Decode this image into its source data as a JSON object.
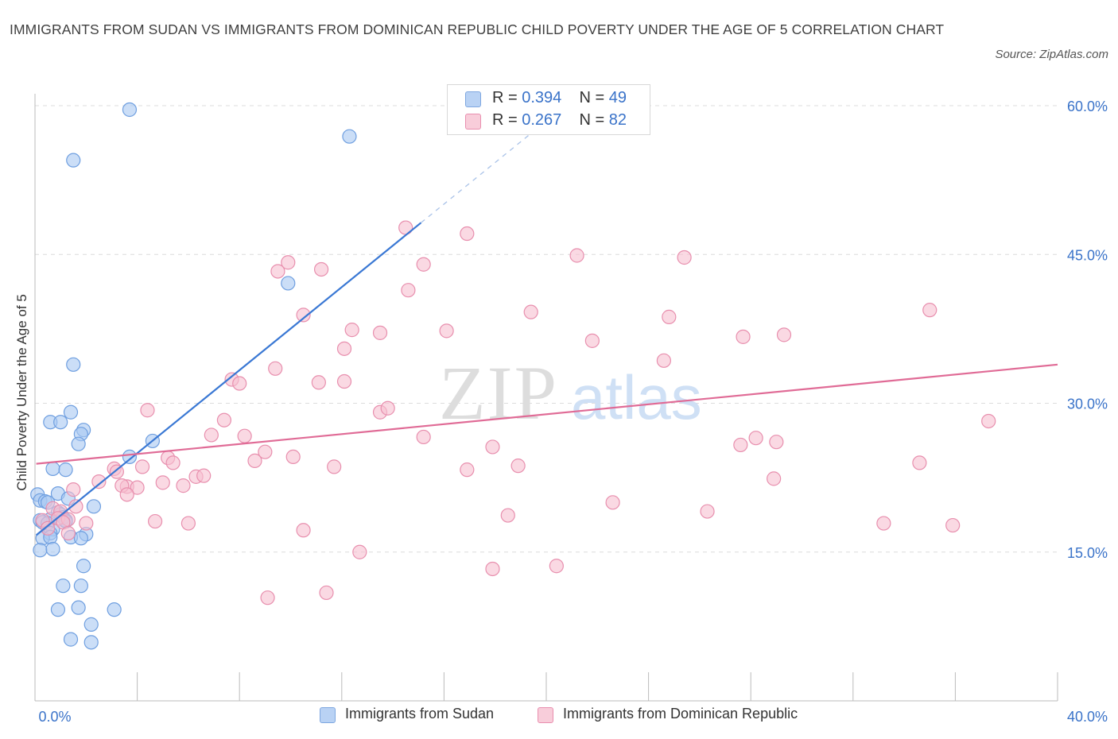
{
  "title": "IMMIGRANTS FROM SUDAN VS IMMIGRANTS FROM DOMINICAN REPUBLIC CHILD POVERTY UNDER THE AGE OF 5 CORRELATION CHART",
  "source": "Source: ZipAtlas.com",
  "watermark": {
    "zip": "ZIP",
    "atlas": "atlas"
  },
  "legend": {
    "r_label": "R =",
    "n_label": "N =",
    "rows": [
      {
        "r": "0.394",
        "n": "49",
        "color": "#a9c8f2",
        "border": "#7ea7e0"
      },
      {
        "r": "0.267",
        "n": "82",
        "color": "#f6bfd0",
        "border": "#e98faf"
      }
    ]
  },
  "bottom_legend": [
    {
      "label": "Immigrants from Sudan",
      "color": "#a9c8f2",
      "border": "#7ea7e0"
    },
    {
      "label": "Immigrants from Dominican Republic",
      "color": "#f6bfd0",
      "border": "#e98faf"
    }
  ],
  "chart_data": {
    "type": "scatter",
    "ylabel": "Child Poverty Under the Age of 5",
    "xlabel": "",
    "xlim": [
      0,
      40
    ],
    "ylim": [
      0,
      60
    ],
    "x_tick_labels": [
      {
        "value": 0,
        "label": "0.0%"
      },
      {
        "value": 40,
        "label": "40.0%"
      }
    ],
    "y_tick_labels": [
      {
        "value": 15,
        "label": "15.0%"
      },
      {
        "value": 30,
        "label": "30.0%"
      },
      {
        "value": 45,
        "label": "45.0%"
      },
      {
        "value": 60,
        "label": "60.0%"
      }
    ],
    "grid": true,
    "series": [
      {
        "name": "Immigrants from Sudan",
        "color": "#a9c8f2",
        "edge": "#6f9fe0",
        "line_color": "#3a78d4",
        "trend": {
          "x0": 0.05,
          "y0": 16.7,
          "x1": 15.1,
          "y1": 48.2,
          "dash_to_x": 19.4,
          "dash_to_y": 57.2
        },
        "points": [
          [
            3.7,
            59.6
          ],
          [
            12.3,
            56.9
          ],
          [
            1.5,
            54.5
          ],
          [
            9.9,
            42.1
          ],
          [
            1.5,
            33.9
          ],
          [
            1.4,
            29.1
          ],
          [
            0.6,
            28.1
          ],
          [
            1.0,
            28.1
          ],
          [
            1.9,
            27.3
          ],
          [
            1.8,
            26.9
          ],
          [
            1.7,
            25.9
          ],
          [
            4.6,
            26.2
          ],
          [
            3.7,
            24.6
          ],
          [
            0.7,
            23.4
          ],
          [
            1.2,
            23.3
          ],
          [
            0.1,
            20.8
          ],
          [
            0.2,
            20.2
          ],
          [
            0.4,
            20.1
          ],
          [
            0.5,
            20.0
          ],
          [
            0.9,
            20.9
          ],
          [
            1.3,
            20.4
          ],
          [
            2.3,
            19.6
          ],
          [
            0.9,
            19.0
          ],
          [
            1.0,
            18.8
          ],
          [
            0.6,
            18.3
          ],
          [
            1.1,
            18.5
          ],
          [
            0.2,
            18.2
          ],
          [
            0.3,
            18.0
          ],
          [
            0.5,
            17.9
          ],
          [
            1.2,
            18.2
          ],
          [
            1.2,
            18.1
          ],
          [
            0.7,
            17.3
          ],
          [
            0.6,
            16.9
          ],
          [
            1.4,
            16.5
          ],
          [
            2.0,
            16.8
          ],
          [
            0.3,
            16.4
          ],
          [
            0.6,
            16.5
          ],
          [
            1.8,
            16.4
          ],
          [
            0.2,
            15.2
          ],
          [
            0.7,
            15.3
          ],
          [
            1.9,
            13.6
          ],
          [
            1.1,
            11.6
          ],
          [
            1.8,
            11.6
          ],
          [
            0.9,
            9.2
          ],
          [
            1.7,
            9.4
          ],
          [
            3.1,
            9.2
          ],
          [
            2.2,
            7.7
          ],
          [
            1.4,
            6.2
          ],
          [
            2.2,
            5.9
          ]
        ]
      },
      {
        "name": "Immigrants from Dominican Republic",
        "color": "#f6bfd0",
        "edge": "#e88fae",
        "line_color": "#e06b96",
        "trend": {
          "x0": 0.05,
          "y0": 23.9,
          "x1": 40.0,
          "y1": 33.9
        },
        "points": [
          [
            14.5,
            47.7
          ],
          [
            16.9,
            47.1
          ],
          [
            21.2,
            44.9
          ],
          [
            25.4,
            44.7
          ],
          [
            9.9,
            44.2
          ],
          [
            15.2,
            44.0
          ],
          [
            9.5,
            43.3
          ],
          [
            11.2,
            43.5
          ],
          [
            14.6,
            41.4
          ],
          [
            19.4,
            39.2
          ],
          [
            10.5,
            38.9
          ],
          [
            24.8,
            38.7
          ],
          [
            35.0,
            39.4
          ],
          [
            12.4,
            37.4
          ],
          [
            13.5,
            37.1
          ],
          [
            16.1,
            37.3
          ],
          [
            21.8,
            36.3
          ],
          [
            27.7,
            36.7
          ],
          [
            29.3,
            36.9
          ],
          [
            12.1,
            35.5
          ],
          [
            24.6,
            34.3
          ],
          [
            9.4,
            33.5
          ],
          [
            7.7,
            32.4
          ],
          [
            11.1,
            32.1
          ],
          [
            12.1,
            32.2
          ],
          [
            8.0,
            32.0
          ],
          [
            13.5,
            29.1
          ],
          [
            13.8,
            29.5
          ],
          [
            4.4,
            29.3
          ],
          [
            7.4,
            28.3
          ],
          [
            37.3,
            28.2
          ],
          [
            6.9,
            26.8
          ],
          [
            8.2,
            26.7
          ],
          [
            15.2,
            26.6
          ],
          [
            28.2,
            26.5
          ],
          [
            17.9,
            25.6
          ],
          [
            27.6,
            25.8
          ],
          [
            29.0,
            26.1
          ],
          [
            9.0,
            25.1
          ],
          [
            5.2,
            24.5
          ],
          [
            5.4,
            24.0
          ],
          [
            8.6,
            24.2
          ],
          [
            10.1,
            24.6
          ],
          [
            34.6,
            24.0
          ],
          [
            11.7,
            23.6
          ],
          [
            18.9,
            23.7
          ],
          [
            4.2,
            23.6
          ],
          [
            3.1,
            23.4
          ],
          [
            3.2,
            23.1
          ],
          [
            16.9,
            23.3
          ],
          [
            6.3,
            22.6
          ],
          [
            6.6,
            22.7
          ],
          [
            5.0,
            22.0
          ],
          [
            2.5,
            22.1
          ],
          [
            3.6,
            21.6
          ],
          [
            3.4,
            21.7
          ],
          [
            4.0,
            21.5
          ],
          [
            5.8,
            21.7
          ],
          [
            28.9,
            22.4
          ],
          [
            1.5,
            21.3
          ],
          [
            3.6,
            20.8
          ],
          [
            1.6,
            19.6
          ],
          [
            0.7,
            19.4
          ],
          [
            22.6,
            20.0
          ],
          [
            1.0,
            19.1
          ],
          [
            18.5,
            18.7
          ],
          [
            26.3,
            19.1
          ],
          [
            0.3,
            18.2
          ],
          [
            0.9,
            18.4
          ],
          [
            1.3,
            18.3
          ],
          [
            1.1,
            18.0
          ],
          [
            2.0,
            17.9
          ],
          [
            4.7,
            18.1
          ],
          [
            6.0,
            17.9
          ],
          [
            33.2,
            17.9
          ],
          [
            35.9,
            17.7
          ],
          [
            0.5,
            17.4
          ],
          [
            10.5,
            17.2
          ],
          [
            1.3,
            16.9
          ],
          [
            12.7,
            15.0
          ],
          [
            17.9,
            13.3
          ],
          [
            20.4,
            13.6
          ],
          [
            11.4,
            10.9
          ],
          [
            9.1,
            10.4
          ]
        ]
      }
    ]
  }
}
